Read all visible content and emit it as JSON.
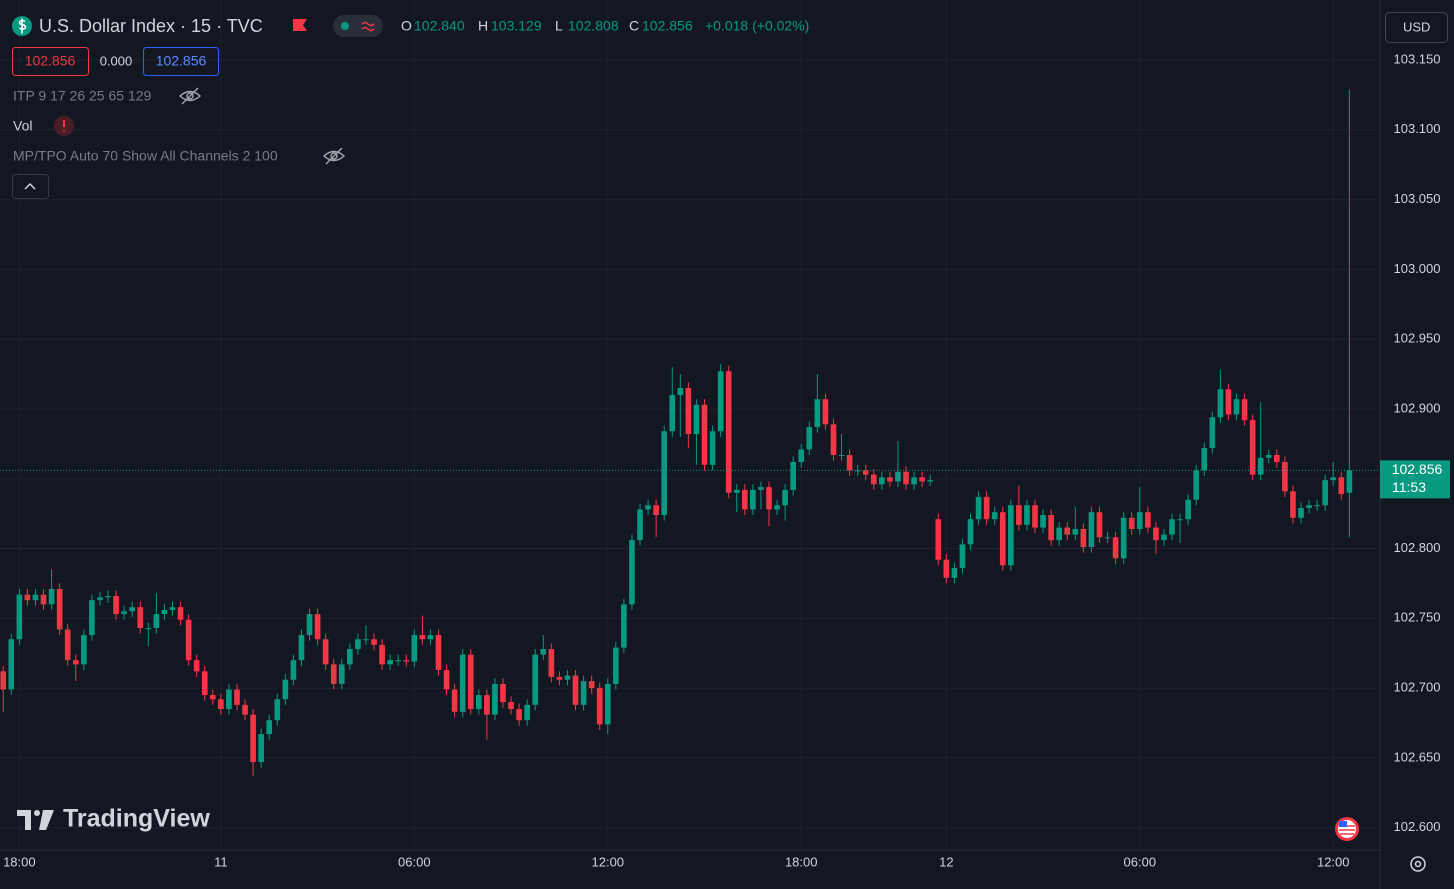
{
  "ui": {
    "symbol": "U.S. Dollar Index · 15 · TVC",
    "ohlc": [
      {
        "k": "O",
        "v": "102.840"
      },
      {
        "k": "H",
        "v": "103.129"
      },
      {
        "k": "L",
        "v": "102.808"
      },
      {
        "k": "C",
        "v": "102.856"
      }
    ],
    "change": "+0.018 (+0.02%)",
    "sell_price": "102.856",
    "spread": "0.000",
    "buy_price": "102.856",
    "indicators": [
      "ITP 9 17 26 25 65 129",
      "Vol",
      "MP/TPO Auto 70 Show All Channels 2 100"
    ],
    "currency": "USD",
    "watermark": "TradingView"
  },
  "chart_data": {
    "type": "candlestick",
    "up_color": "#089981",
    "down_color": "#f23645",
    "grid": true,
    "last_price_label": "102.856",
    "countdown": "11:53",
    "xlim": [
      -0.4,
      170.8
    ],
    "xticks": [
      {
        "value": 2,
        "label": "18:00"
      },
      {
        "value": 27,
        "label": "11"
      },
      {
        "value": 51,
        "label": "06:00"
      },
      {
        "value": 75,
        "label": "12:00"
      },
      {
        "value": 99,
        "label": "18:00"
      },
      {
        "value": 117,
        "label": "12"
      },
      {
        "value": 141,
        "label": "06:00"
      },
      {
        "value": 165,
        "label": "12:00"
      }
    ],
    "ylim": [
      102.584,
      103.193
    ],
    "yticks": [
      {
        "value": 102.6,
        "label": "102.600"
      },
      {
        "value": 102.65,
        "label": "102.650"
      },
      {
        "value": 102.7,
        "label": "102.700"
      },
      {
        "value": 102.75,
        "label": "102.750"
      },
      {
        "value": 102.8,
        "label": "102.800"
      },
      {
        "value": 102.85,
        "label": "102.850"
      },
      {
        "value": 102.9,
        "label": "102.900"
      },
      {
        "value": 102.95,
        "label": "102.950"
      },
      {
        "value": 103.0,
        "label": "103.000"
      },
      {
        "value": 103.05,
        "label": "103.050"
      },
      {
        "value": 103.1,
        "label": "103.100"
      },
      {
        "value": 103.15,
        "label": "103.150"
      }
    ],
    "ohlc": [
      [
        102.712,
        102.716,
        102.683,
        102.699
      ],
      [
        102.699,
        102.739,
        102.695,
        102.735
      ],
      [
        102.735,
        102.771,
        102.731,
        102.767
      ],
      [
        102.767,
        102.771,
        102.759,
        102.763
      ],
      [
        102.763,
        102.771,
        102.759,
        102.767
      ],
      [
        102.767,
        102.771,
        102.756,
        102.76
      ],
      [
        102.76,
        102.785,
        102.756,
        102.771
      ],
      [
        102.771,
        102.775,
        102.738,
        102.742
      ],
      [
        102.742,
        102.746,
        102.716,
        102.72
      ],
      [
        102.72,
        102.724,
        102.705,
        102.717
      ],
      [
        102.717,
        102.742,
        102.713,
        102.738
      ],
      [
        102.738,
        102.767,
        102.734,
        102.763
      ],
      [
        102.763,
        102.769,
        102.759,
        102.765
      ],
      [
        102.765,
        102.77,
        102.761,
        102.766
      ],
      [
        102.766,
        102.77,
        102.749,
        102.753
      ],
      [
        102.753,
        102.759,
        102.749,
        102.755
      ],
      [
        102.755,
        102.762,
        102.751,
        102.758
      ],
      [
        102.758,
        102.762,
        102.739,
        102.743
      ],
      [
        102.743,
        102.747,
        102.73,
        102.743
      ],
      [
        102.743,
        102.768,
        102.739,
        102.753
      ],
      [
        102.753,
        102.76,
        102.749,
        102.756
      ],
      [
        102.756,
        102.762,
        102.752,
        102.758
      ],
      [
        102.758,
        102.762,
        102.745,
        102.749
      ],
      [
        102.749,
        102.753,
        102.716,
        102.72
      ],
      [
        102.72,
        102.724,
        102.708,
        102.712
      ],
      [
        102.712,
        102.716,
        102.691,
        102.695
      ],
      [
        102.695,
        102.699,
        102.688,
        102.692
      ],
      [
        102.692,
        102.696,
        102.681,
        102.685
      ],
      [
        102.685,
        102.703,
        102.681,
        102.699
      ],
      [
        102.699,
        102.703,
        102.684,
        102.688
      ],
      [
        102.688,
        102.692,
        102.677,
        102.681
      ],
      [
        102.681,
        102.685,
        102.637,
        102.647
      ],
      [
        102.647,
        102.671,
        102.643,
        102.667
      ],
      [
        102.667,
        102.681,
        102.663,
        102.677
      ],
      [
        102.677,
        102.696,
        102.673,
        102.692
      ],
      [
        102.692,
        102.71,
        102.688,
        102.706
      ],
      [
        102.706,
        102.724,
        102.702,
        102.72
      ],
      [
        102.72,
        102.742,
        102.716,
        102.738
      ],
      [
        102.738,
        102.757,
        102.734,
        102.753
      ],
      [
        102.753,
        102.757,
        102.731,
        102.735
      ],
      [
        102.735,
        102.739,
        102.713,
        102.717
      ],
      [
        102.717,
        102.721,
        102.699,
        102.703
      ],
      [
        102.703,
        102.721,
        102.699,
        102.717
      ],
      [
        102.717,
        102.732,
        102.713,
        102.728
      ],
      [
        102.728,
        102.739,
        102.724,
        102.735
      ],
      [
        102.735,
        102.745,
        102.731,
        102.735
      ],
      [
        102.735,
        102.739,
        102.727,
        102.731
      ],
      [
        102.731,
        102.735,
        102.713,
        102.717
      ],
      [
        102.717,
        102.724,
        102.713,
        102.72
      ],
      [
        102.72,
        102.724,
        102.716,
        102.72
      ],
      [
        102.72,
        102.724,
        102.715,
        102.719
      ],
      [
        102.719,
        102.742,
        102.715,
        102.738
      ],
      [
        102.738,
        102.752,
        102.731,
        102.735
      ],
      [
        102.735,
        102.742,
        102.731,
        102.738
      ],
      [
        102.738,
        102.742,
        102.709,
        102.713
      ],
      [
        102.713,
        102.717,
        102.695,
        102.699
      ],
      [
        102.699,
        102.703,
        102.679,
        102.683
      ],
      [
        102.683,
        102.728,
        102.679,
        102.724
      ],
      [
        102.724,
        102.728,
        102.681,
        102.685
      ],
      [
        102.685,
        102.699,
        102.681,
        102.695
      ],
      [
        102.695,
        102.699,
        102.663,
        102.681
      ],
      [
        102.681,
        102.707,
        102.677,
        102.703
      ],
      [
        102.703,
        102.707,
        102.686,
        102.69
      ],
      [
        102.69,
        102.694,
        102.681,
        102.685
      ],
      [
        102.685,
        102.689,
        102.673,
        102.677
      ],
      [
        102.677,
        102.692,
        102.673,
        102.688
      ],
      [
        102.688,
        102.728,
        102.684,
        102.724
      ],
      [
        102.724,
        102.738,
        102.72,
        102.728
      ],
      [
        102.728,
        102.732,
        102.704,
        102.708
      ],
      [
        102.708,
        102.712,
        102.702,
        102.706
      ],
      [
        102.706,
        102.713,
        102.702,
        102.709
      ],
      [
        102.709,
        102.713,
        102.684,
        102.688
      ],
      [
        102.688,
        102.709,
        102.684,
        102.705
      ],
      [
        102.705,
        102.709,
        102.696,
        102.7
      ],
      [
        102.7,
        102.704,
        102.67,
        102.674
      ],
      [
        102.674,
        102.707,
        102.667,
        102.703
      ],
      [
        102.703,
        102.733,
        102.699,
        102.729
      ],
      [
        102.729,
        102.764,
        102.725,
        102.76
      ],
      [
        102.76,
        102.81,
        102.756,
        102.806
      ],
      [
        102.806,
        102.832,
        102.802,
        102.828
      ],
      [
        102.828,
        102.835,
        102.824,
        102.831
      ],
      [
        102.831,
        102.835,
        102.808,
        102.824
      ],
      [
        102.824,
        102.888,
        102.82,
        102.884
      ],
      [
        102.884,
        102.93,
        102.88,
        102.91
      ],
      [
        102.91,
        102.925,
        102.88,
        102.915
      ],
      [
        102.915,
        102.919,
        102.872,
        102.882
      ],
      [
        102.882,
        102.907,
        102.86,
        102.903
      ],
      [
        102.903,
        102.907,
        102.856,
        102.86
      ],
      [
        102.86,
        102.888,
        102.856,
        102.884
      ],
      [
        102.884,
        102.932,
        102.88,
        102.927
      ],
      [
        102.927,
        102.931,
        102.836,
        102.84
      ],
      [
        102.84,
        102.846,
        102.826,
        102.842
      ],
      [
        102.842,
        102.846,
        102.824,
        102.828
      ],
      [
        102.828,
        102.846,
        102.824,
        102.842
      ],
      [
        102.842,
        102.848,
        102.828,
        102.844
      ],
      [
        102.844,
        102.848,
        102.816,
        102.828
      ],
      [
        102.828,
        102.835,
        102.824,
        102.831
      ],
      [
        102.831,
        102.846,
        102.82,
        102.842
      ],
      [
        102.842,
        102.866,
        102.838,
        102.862
      ],
      [
        102.862,
        102.875,
        102.858,
        102.871
      ],
      [
        102.871,
        102.891,
        102.867,
        102.887
      ],
      [
        102.887,
        102.925,
        102.883,
        102.907
      ],
      [
        102.907,
        102.911,
        102.885,
        102.889
      ],
      [
        102.889,
        102.893,
        102.863,
        102.867
      ],
      [
        102.867,
        102.882,
        102.863,
        102.867
      ],
      [
        102.867,
        102.871,
        102.852,
        102.856
      ],
      [
        102.856,
        102.86,
        102.852,
        102.856
      ],
      [
        102.856,
        102.86,
        102.849,
        102.853
      ],
      [
        102.853,
        102.857,
        102.842,
        102.846
      ],
      [
        102.846,
        102.855,
        102.842,
        102.851
      ],
      [
        102.851,
        102.855,
        102.844,
        102.848
      ],
      [
        102.848,
        102.877,
        102.844,
        102.855
      ],
      [
        102.855,
        102.859,
        102.842,
        102.846
      ],
      [
        102.846,
        102.855,
        102.842,
        102.851
      ],
      [
        102.851,
        102.855,
        102.844,
        102.848
      ],
      [
        102.848,
        102.853,
        102.845,
        102.849
      ],
      [
        102.821,
        102.825,
        102.788,
        102.792
      ],
      [
        102.792,
        102.796,
        102.775,
        102.779
      ],
      [
        102.779,
        102.79,
        102.775,
        102.786
      ],
      [
        102.786,
        102.807,
        102.782,
        102.803
      ],
      [
        102.803,
        102.825,
        102.799,
        102.821
      ],
      [
        102.821,
        102.841,
        102.817,
        102.837
      ],
      [
        102.837,
        102.841,
        102.817,
        102.821
      ],
      [
        102.821,
        102.83,
        102.817,
        102.826
      ],
      [
        102.826,
        102.83,
        102.784,
        102.788
      ],
      [
        102.788,
        102.835,
        102.784,
        102.831
      ],
      [
        102.831,
        102.845,
        102.813,
        102.817
      ],
      [
        102.817,
        102.835,
        102.813,
        102.831
      ],
      [
        102.831,
        102.835,
        102.811,
        102.815
      ],
      [
        102.815,
        102.828,
        102.811,
        102.824
      ],
      [
        102.824,
        102.828,
        102.802,
        102.806
      ],
      [
        102.806,
        102.819,
        102.802,
        102.815
      ],
      [
        102.815,
        102.819,
        102.806,
        102.81
      ],
      [
        102.81,
        102.83,
        102.806,
        102.814
      ],
      [
        102.814,
        102.818,
        102.797,
        102.801
      ],
      [
        102.801,
        102.83,
        102.797,
        102.826
      ],
      [
        102.826,
        102.83,
        102.804,
        102.808
      ],
      [
        102.808,
        102.812,
        102.804,
        102.808
      ],
      [
        102.808,
        102.812,
        102.789,
        102.793
      ],
      [
        102.793,
        102.826,
        102.789,
        102.822
      ],
      [
        102.822,
        102.826,
        102.81,
        102.814
      ],
      [
        102.814,
        102.844,
        102.81,
        102.826
      ],
      [
        102.826,
        102.83,
        102.811,
        102.815
      ],
      [
        102.815,
        102.819,
        102.796,
        102.806
      ],
      [
        102.806,
        102.814,
        102.802,
        102.81
      ],
      [
        102.81,
        102.825,
        102.806,
        102.821
      ],
      [
        102.821,
        102.825,
        102.804,
        102.821
      ],
      [
        102.821,
        102.839,
        102.817,
        102.835
      ],
      [
        102.835,
        102.86,
        102.831,
        102.856
      ],
      [
        102.856,
        102.876,
        102.852,
        102.872
      ],
      [
        102.872,
        102.898,
        102.868,
        102.894
      ],
      [
        102.894,
        102.928,
        102.89,
        102.914
      ],
      [
        102.914,
        102.918,
        102.892,
        102.896
      ],
      [
        102.896,
        102.911,
        102.892,
        102.907
      ],
      [
        102.907,
        102.911,
        102.888,
        102.892
      ],
      [
        102.892,
        102.896,
        102.849,
        102.853
      ],
      [
        102.853,
        102.905,
        102.849,
        102.865
      ],
      [
        102.865,
        102.871,
        102.861,
        102.867
      ],
      [
        102.867,
        102.871,
        102.858,
        102.862
      ],
      [
        102.862,
        102.866,
        102.837,
        102.841
      ],
      [
        102.841,
        102.845,
        102.818,
        102.822
      ],
      [
        102.822,
        102.833,
        102.818,
        102.829
      ],
      [
        102.829,
        102.835,
        102.825,
        102.831
      ],
      [
        102.831,
        102.835,
        102.827,
        102.831
      ],
      [
        102.831,
        102.853,
        102.827,
        102.849
      ],
      [
        102.849,
        102.862,
        102.845,
        102.851
      ],
      [
        102.851,
        102.855,
        102.835,
        102.839
      ],
      [
        102.84,
        103.129,
        102.808,
        102.856
      ]
    ]
  }
}
